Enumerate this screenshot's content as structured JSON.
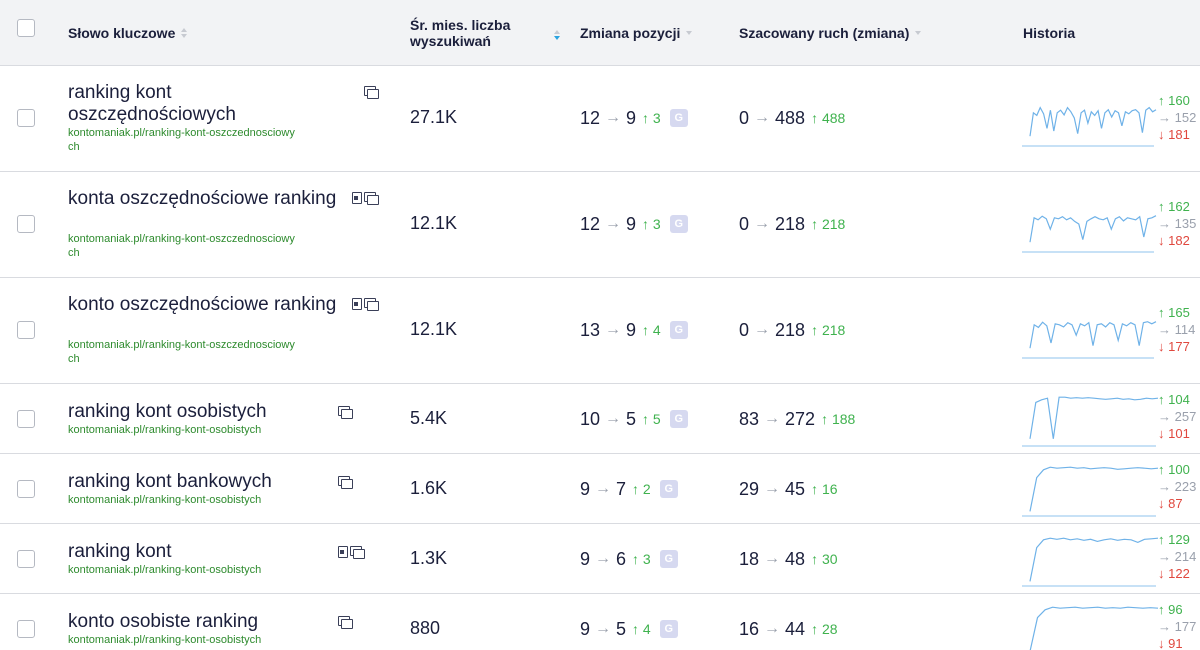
{
  "header": {
    "keyword": "Słowo kluczowe",
    "volume_line1": "Śr. mies. liczba",
    "volume_line2": "wyszukiwań",
    "position_change": "Zmiana pozycji",
    "traffic": "Szacowany ruch (zmiana)",
    "history": "Historia"
  },
  "arrow": "→",
  "rows": [
    {
      "keyword": "ranking kont oszczędnościowych",
      "url": "kontomaniak.pl/ranking-kont-oszczednosciowych",
      "icons": [
        "serp-features-icon"
      ],
      "volume": "27.1K",
      "pos_from": "12",
      "pos_to": "9",
      "pos_change": "↑ 3",
      "g": "G",
      "traffic_from": "0",
      "traffic_to": "488",
      "traffic_change": "↑ 488",
      "hist_up": "↑ 160",
      "hist_same": "→ 152",
      "hist_down": "↓ 181",
      "spark": [
        85,
        40,
        45,
        30,
        42,
        70,
        35,
        75,
        40,
        35,
        44,
        30,
        38,
        50,
        80,
        40,
        35,
        60,
        38,
        45,
        36,
        70,
        40,
        34,
        48,
        36,
        40,
        65,
        38,
        42,
        36,
        34,
        40,
        78,
        35,
        30,
        38,
        34
      ],
      "spark_style": "jagged"
    },
    {
      "keyword": "konta oszczędnościowe ranking",
      "url": "kontomaniak.pl/ranking-kont-oszczednosciowych",
      "icons": [
        "document-icon",
        "serp-features-icon"
      ],
      "volume": "12.1K",
      "pos_from": "12",
      "pos_to": "9",
      "pos_change": "↑ 3",
      "g": "G",
      "traffic_from": "0",
      "traffic_to": "218",
      "traffic_change": "↑ 218",
      "hist_up": "↑ 162",
      "hist_same": "→ 135",
      "hist_down": "↓ 182",
      "spark": [
        85,
        38,
        42,
        35,
        40,
        60,
        38,
        40,
        36,
        42,
        38,
        45,
        50,
        80,
        45,
        40,
        36,
        40,
        42,
        38,
        60,
        40,
        36,
        44,
        38,
        40,
        42,
        36,
        75,
        40,
        38,
        34
      ],
      "spark_style": "jagged"
    },
    {
      "keyword": "konto oszczędnościowe ranking",
      "url": "kontomaniak.pl/ranking-kont-oszczednosciowych",
      "icons": [
        "document-icon",
        "serp-features-icon"
      ],
      "volume": "12.1K",
      "pos_from": "13",
      "pos_to": "9",
      "pos_change": "↑ 4",
      "g": "G",
      "traffic_from": "0",
      "traffic_to": "218",
      "traffic_change": "↑ 218",
      "hist_up": "↑ 165",
      "hist_same": "→ 114",
      "hist_down": "↓ 177",
      "spark": [
        85,
        40,
        45,
        35,
        42,
        75,
        38,
        40,
        44,
        36,
        40,
        60,
        38,
        42,
        36,
        80,
        40,
        38,
        44,
        36,
        40,
        70,
        38,
        42,
        36,
        40,
        80,
        36,
        34,
        38,
        34
      ],
      "spark_style": "jagged"
    },
    {
      "keyword": "ranking kont osobistych",
      "url": "kontomaniak.pl/ranking-kont-osobistych",
      "icons": [
        "serp-features-icon"
      ],
      "volume": "5.4K",
      "pos_from": "10",
      "pos_to": "5",
      "pos_change": "↑ 5",
      "g": "G",
      "traffic_from": "83",
      "traffic_to": "272",
      "traffic_change": "↑ 188",
      "hist_up": "↑ 104",
      "hist_same": "→ 257",
      "hist_down": "↓ 101",
      "spark": [
        90,
        20,
        15,
        12,
        90,
        10,
        10,
        12,
        11,
        12,
        11,
        12,
        13,
        14,
        13,
        12,
        14,
        13,
        15,
        14,
        12,
        13,
        12
      ],
      "spark_style": "plateau"
    },
    {
      "keyword": "ranking kont bankowych",
      "url": "kontomaniak.pl/ranking-kont-osobistych",
      "icons": [
        "serp-features-icon"
      ],
      "volume": "1.6K",
      "pos_from": "9",
      "pos_to": "7",
      "pos_change": "↑ 2",
      "g": "G",
      "traffic_from": "29",
      "traffic_to": "45",
      "traffic_change": "↑ 16",
      "hist_up": "↑ 100",
      "hist_same": "→ 223",
      "hist_down": "↓ 87",
      "spark": [
        95,
        30,
        15,
        10,
        12,
        11,
        10,
        12,
        11,
        13,
        12,
        11,
        12,
        14,
        13,
        12,
        11,
        12,
        13,
        12
      ],
      "spark_style": "plateau"
    },
    {
      "keyword": "ranking kont",
      "url": "kontomaniak.pl/ranking-kont-osobistych",
      "icons": [
        "document-icon",
        "serp-features-icon"
      ],
      "volume": "1.3K",
      "pos_from": "9",
      "pos_to": "6",
      "pos_change": "↑ 3",
      "g": "G",
      "traffic_from": "18",
      "traffic_to": "48",
      "traffic_change": "↑ 30",
      "hist_up": "↑ 129",
      "hist_same": "→ 214",
      "hist_down": "↓ 122",
      "spark": [
        95,
        30,
        15,
        12,
        14,
        12,
        15,
        13,
        16,
        14,
        18,
        15,
        13,
        16,
        14,
        15,
        20,
        14,
        13,
        12
      ],
      "spark_style": "plateau"
    },
    {
      "keyword": "konto osobiste ranking",
      "url": "kontomaniak.pl/ranking-kont-osobistych",
      "icons": [
        "serp-features-icon"
      ],
      "volume": "880",
      "pos_from": "9",
      "pos_to": "5",
      "pos_change": "↑ 4",
      "g": "G",
      "traffic_from": "16",
      "traffic_to": "44",
      "traffic_change": "↑ 28",
      "hist_up": "↑ 96",
      "hist_same": "→ 177",
      "hist_down": "↓ 91",
      "spark": [
        95,
        30,
        15,
        10,
        12,
        11,
        10,
        12,
        11,
        10,
        12,
        11,
        12,
        10,
        11,
        12,
        11,
        12
      ],
      "spark_style": "plateau"
    }
  ]
}
